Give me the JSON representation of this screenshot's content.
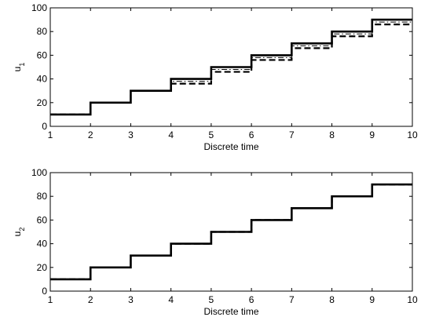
{
  "chart_data": [
    {
      "type": "line",
      "step": "post",
      "ylabel": "u",
      "ylabel_sub": "1",
      "xlabel": "Discrete time",
      "xlim": [
        1,
        10
      ],
      "ylim": [
        0,
        100
      ],
      "xticks": [
        1,
        2,
        3,
        4,
        5,
        6,
        7,
        8,
        9,
        10
      ],
      "yticks": [
        0,
        20,
        40,
        60,
        80,
        100
      ],
      "grid": false,
      "series": [
        {
          "style": "solid",
          "x": [
            1,
            2,
            3,
            4,
            5,
            6,
            7,
            8,
            9,
            10
          ],
          "values": [
            10,
            20,
            30,
            40,
            50,
            60,
            70,
            80,
            90,
            90
          ]
        },
        {
          "style": "dashed",
          "x": [
            1,
            2,
            3,
            4,
            5,
            6,
            7,
            8,
            9,
            10
          ],
          "values": [
            10,
            20,
            30,
            36,
            46,
            56,
            66,
            76,
            86,
            86
          ]
        },
        {
          "style": "dashdot",
          "x": [
            1,
            2,
            3,
            4,
            5,
            6,
            7,
            8,
            9,
            10
          ],
          "values": [
            10,
            20,
            30,
            38,
            48,
            58,
            68,
            78,
            88,
            88
          ]
        }
      ]
    },
    {
      "type": "line",
      "step": "post",
      "ylabel": "u",
      "ylabel_sub": "2",
      "xlabel": "Discrete time",
      "xlim": [
        1,
        10
      ],
      "ylim": [
        0,
        100
      ],
      "xticks": [
        1,
        2,
        3,
        4,
        5,
        6,
        7,
        8,
        9,
        10
      ],
      "yticks": [
        0,
        20,
        40,
        60,
        80,
        100
      ],
      "grid": false,
      "series": [
        {
          "style": "solid",
          "x": [
            1,
            2,
            3,
            4,
            5,
            6,
            7,
            8,
            9,
            10
          ],
          "values": [
            10,
            20,
            30,
            40,
            50,
            60,
            70,
            80,
            90,
            90
          ]
        },
        {
          "style": "dashed",
          "x": [
            1,
            2,
            3,
            4,
            5,
            6,
            7,
            8,
            9,
            10
          ],
          "values": [
            10,
            20,
            30,
            40,
            50,
            60,
            70,
            80,
            90,
            90
          ]
        },
        {
          "style": "dashdot",
          "x": [
            1,
            2,
            3,
            4,
            5,
            6,
            7,
            8,
            9,
            10
          ],
          "values": [
            10,
            20,
            30,
            40,
            50,
            60,
            70,
            80,
            90,
            90
          ]
        }
      ]
    }
  ]
}
